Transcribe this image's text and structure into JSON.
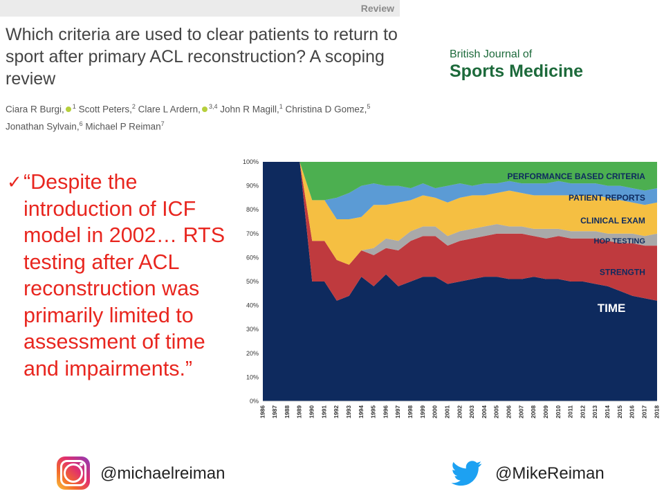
{
  "header": {
    "section_label": "Review",
    "title": "Which criteria are used to clear patients to return to sport after primary ACL reconstruction? A scoping review",
    "authors": [
      {
        "name": "Ciara R Burgi,",
        "orcid": true,
        "aff": "1"
      },
      {
        "name": "Scott Peters,",
        "orcid": false,
        "aff": "2"
      },
      {
        "name": "Clare L Ardern,",
        "orcid": true,
        "aff": "3,4"
      },
      {
        "name": "John R Magill,",
        "orcid": false,
        "aff": "1"
      },
      {
        "name": "Christina D Gomez,",
        "orcid": false,
        "aff": "5"
      },
      {
        "name": "Jonathan Sylvain,",
        "orcid": false,
        "aff": "6"
      },
      {
        "name": "Michael P Reiman",
        "orcid": false,
        "aff": "7"
      }
    ]
  },
  "journal": {
    "line1": "British Journal of",
    "line2": "Sports Medicine",
    "color": "#1d6a3b"
  },
  "quote": {
    "checkmark": "✓",
    "text": "“Despite the introduction of ICF model in 2002… RTS testing after ACL reconstruction was primarily limited to assessment of time and impairments.”",
    "color": "#e8261f"
  },
  "footer": {
    "instagram_icon": "instagram-icon",
    "instagram_handle": "@michaelreiman",
    "twitter_icon": "twitter-bird-icon",
    "twitter_handle": "@MikeReiman"
  },
  "chart_data": {
    "type": "area",
    "stacked": true,
    "x": [
      "1986",
      "1987",
      "1988",
      "1989",
      "1990",
      "1991",
      "1992",
      "1993",
      "1994",
      "1995",
      "1996",
      "1997",
      "1998",
      "1999",
      "2000",
      "2001",
      "2002",
      "2003",
      "2004",
      "2005",
      "2006",
      "2007",
      "2008",
      "2009",
      "2010",
      "2011",
      "2012",
      "2013",
      "2014",
      "2015",
      "2016",
      "2017",
      "2018"
    ],
    "y_ticks": [
      "0%",
      "10%",
      "20%",
      "30%",
      "40%",
      "50%",
      "60%",
      "70%",
      "80%",
      "90%",
      "100%"
    ],
    "ylim": [
      0,
      100
    ],
    "grid": false,
    "series": [
      {
        "name": "TIME",
        "color": "#0e2a5e",
        "label_color": "#ffffff",
        "values": [
          100,
          100,
          100,
          100,
          50,
          50,
          42,
          44,
          52,
          48,
          53,
          48,
          50,
          52,
          52,
          49,
          50,
          51,
          52,
          52,
          51,
          51,
          52,
          51,
          51,
          50,
          50,
          49,
          48,
          46,
          44,
          43,
          42
        ]
      },
      {
        "name": "STRENGTH",
        "color": "#bf3a3e",
        "label_color": "#0e2a5e",
        "values": [
          0,
          0,
          0,
          0,
          17,
          17,
          17,
          13,
          11,
          13,
          11,
          15,
          17,
          17,
          17,
          16,
          17,
          17,
          17,
          18,
          19,
          19,
          17,
          17,
          18,
          18,
          18,
          19,
          19,
          20,
          22,
          22,
          23
        ]
      },
      {
        "name": "HOP TESTING",
        "color": "#a9a9a9",
        "label_color": "#0e2a5e",
        "values": [
          0,
          0,
          0,
          0,
          0,
          0,
          0,
          0,
          0,
          3,
          4,
          4,
          4,
          4,
          4,
          4,
          4,
          4,
          4,
          4,
          3,
          3,
          3,
          4,
          3,
          3,
          3,
          3,
          3,
          4,
          4,
          4,
          5
        ]
      },
      {
        "name": "CLINICAL EXAM",
        "color": "#f5bf42",
        "label_color": "#0e2a5e",
        "values": [
          0,
          0,
          0,
          0,
          17,
          17,
          17,
          19,
          14,
          18,
          14,
          16,
          13,
          13,
          12,
          14,
          14,
          14,
          13,
          13,
          15,
          14,
          14,
          14,
          14,
          15,
          15,
          15,
          15,
          14,
          13,
          13,
          13
        ]
      },
      {
        "name": "PATIENT REPORTS",
        "color": "#5b9bd5",
        "label_color": "#0e2a5e",
        "values": [
          0,
          0,
          0,
          0,
          0,
          0,
          9,
          11,
          13,
          9,
          8,
          7,
          5,
          5,
          4,
          7,
          6,
          4,
          5,
          4,
          4,
          4,
          5,
          5,
          6,
          5,
          5,
          5,
          5,
          6,
          6,
          6,
          6
        ]
      },
      {
        "name": "PERFORMANCE BASED CRITERIA",
        "color": "#4caf50",
        "label_color": "#0e2a5e",
        "values": [
          0,
          0,
          0,
          0,
          16,
          16,
          15,
          13,
          10,
          9,
          10,
          10,
          11,
          9,
          11,
          10,
          9,
          10,
          9,
          9,
          8,
          9,
          9,
          9,
          8,
          9,
          9,
          9,
          10,
          10,
          11,
          12,
          11
        ]
      }
    ]
  }
}
